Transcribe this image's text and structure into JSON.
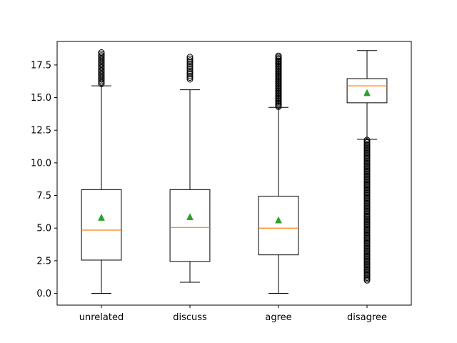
{
  "chart_data": {
    "type": "box",
    "categories": [
      "unrelated",
      "discuss",
      "agree",
      "disagree"
    ],
    "ylim": [
      -0.9,
      19.3
    ],
    "yticks": [
      0.0,
      2.5,
      5.0,
      7.5,
      10.0,
      12.5,
      15.0,
      17.5
    ],
    "ytick_labels": [
      "0.0",
      "2.5",
      "5.0",
      "7.5",
      "10.0",
      "12.5",
      "15.0",
      "17.5"
    ],
    "title": "",
    "xlabel": "",
    "ylabel": "",
    "colors": {
      "box": "#000000",
      "median": "#ff7f0e",
      "mean": "#2ca02c"
    },
    "boxes": [
      {
        "label": "unrelated",
        "whisker_low": 0.0,
        "q1": 2.55,
        "median": 4.85,
        "q3": 7.95,
        "whisker_high": 15.9,
        "mean": 5.8,
        "outlier_range": [
          16.05,
          18.45
        ],
        "outlier_count": 22
      },
      {
        "label": "discuss",
        "whisker_low": 0.85,
        "q1": 2.45,
        "median": 5.05,
        "q3": 7.95,
        "whisker_high": 15.6,
        "mean": 5.85,
        "outlier_range": [
          16.4,
          18.1
        ],
        "outlier_count": 14
      },
      {
        "label": "agree",
        "whisker_low": 0.0,
        "q1": 2.95,
        "median": 5.0,
        "q3": 7.45,
        "whisker_high": 14.25,
        "mean": 5.6,
        "outlier_range": [
          14.3,
          18.2
        ],
        "outlier_count": 42
      },
      {
        "label": "disagree",
        "whisker_low": 11.8,
        "q1": 14.6,
        "median": 15.9,
        "q3": 16.45,
        "whisker_high": 18.6,
        "mean": 15.35,
        "outlier_range": [
          1.0,
          11.75
        ],
        "outlier_count": 110
      }
    ]
  }
}
